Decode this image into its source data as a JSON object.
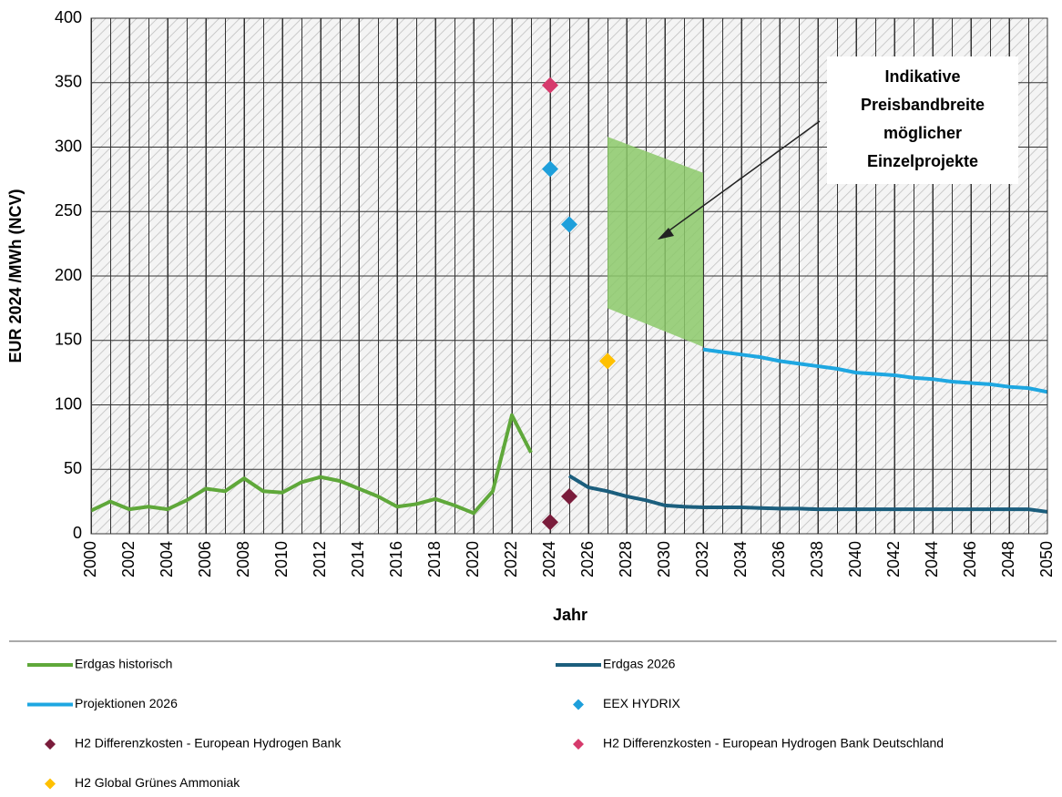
{
  "chart_data": {
    "type": "line",
    "y_label": "EUR 2024 /MWh (NCV)",
    "x_label": "Jahr",
    "xlim": [
      2000,
      2050
    ],
    "ylim": [
      0,
      400
    ],
    "xticks": [
      2000,
      2002,
      2004,
      2006,
      2008,
      2010,
      2012,
      2014,
      2016,
      2018,
      2020,
      2022,
      2024,
      2026,
      2028,
      2030,
      2032,
      2034,
      2036,
      2038,
      2040,
      2042,
      2044,
      2046,
      2048,
      2050
    ],
    "yticks": [
      0,
      50,
      100,
      150,
      200,
      250,
      300,
      350,
      400
    ],
    "grid": true,
    "band": {
      "color": "#8cc96a",
      "x": [
        2027,
        2032
      ],
      "lower": [
        175,
        145
      ],
      "upper": [
        308,
        280
      ]
    },
    "annotation": [
      "Indikative",
      "Preisbandbreite",
      "möglicher",
      "Einzelprojekte"
    ],
    "series": [
      {
        "name": "Erdgas historisch",
        "color": "#5fa83a",
        "style": "line",
        "x": [
          2000,
          2001,
          2002,
          2003,
          2004,
          2005,
          2006,
          2007,
          2008,
          2009,
          2010,
          2011,
          2012,
          2013,
          2014,
          2015,
          2016,
          2017,
          2018,
          2019,
          2020,
          2021,
          2022,
          2023
        ],
        "values": [
          18,
          25,
          19,
          21,
          19,
          26,
          35,
          33,
          43,
          33,
          32,
          40,
          44,
          41,
          35,
          29,
          21,
          23,
          27,
          22,
          16,
          33,
          92,
          63
        ]
      },
      {
        "name": "Erdgas 2026",
        "color": "#1b5e7d",
        "style": "line",
        "x": [
          2025,
          2026,
          2027,
          2028,
          2029,
          2030,
          2031,
          2032,
          2033,
          2034,
          2035,
          2036,
          2037,
          2038,
          2039,
          2040,
          2041,
          2042,
          2043,
          2044,
          2045,
          2046,
          2047,
          2048,
          2049,
          2050
        ],
        "values": [
          45,
          36,
          33,
          29,
          26,
          22,
          21,
          20.5,
          20.5,
          20.5,
          20,
          19.5,
          19.5,
          19,
          19,
          19,
          19,
          19,
          19,
          19,
          19,
          19,
          19,
          19,
          19,
          17
        ]
      },
      {
        "name": "Projektionen 2026",
        "color": "#1ea7e1",
        "style": "line",
        "x": [
          2032,
          2033,
          2034,
          2035,
          2036,
          2037,
          2038,
          2039,
          2040,
          2041,
          2042,
          2043,
          2044,
          2045,
          2046,
          2047,
          2048,
          2049,
          2050
        ],
        "values": [
          143,
          141,
          139,
          137,
          134,
          132,
          130,
          128,
          125,
          124,
          123,
          121,
          120,
          118,
          117,
          116,
          114,
          113,
          110
        ]
      },
      {
        "name": "EEX HYDRIX",
        "color": "#1e9fdb",
        "style": "marker",
        "x": [
          2024,
          2025
        ],
        "values": [
          283,
          240
        ]
      },
      {
        "name": "H2 Differenzkosten - European Hydrogen Bank",
        "color": "#7a1c3b",
        "style": "marker",
        "x": [
          2024,
          2025
        ],
        "values": [
          9,
          29
        ]
      },
      {
        "name": "H2 Differenzkosten - European Hydrogen Bank Deutschland",
        "color": "#d63a6c",
        "style": "marker",
        "x": [
          2024
        ],
        "values": [
          348
        ]
      },
      {
        "name": "H2 Global Grünes Ammoniak",
        "color": "#ffc000",
        "style": "marker",
        "x": [
          2027
        ],
        "values": [
          134
        ]
      }
    ]
  }
}
